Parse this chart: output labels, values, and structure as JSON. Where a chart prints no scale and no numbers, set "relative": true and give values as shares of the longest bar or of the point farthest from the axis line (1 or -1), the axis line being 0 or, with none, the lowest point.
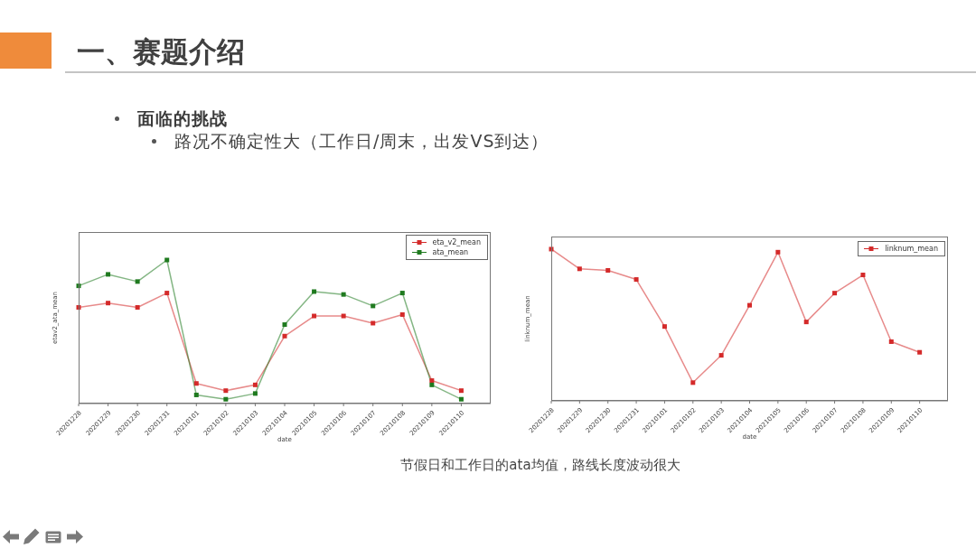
{
  "chart_data": [
    {
      "type": "other",
      "title": "一、赛题介绍",
      "annotations": [
        "面临的挑战",
        "路况不确定性大（工作日/周末，出发VS到达）"
      ]
    },
    {
      "type": "line",
      "categories": [
        "20201228",
        "20201229",
        "20201230",
        "20201231",
        "20210101",
        "20210102",
        "20210103",
        "20210104",
        "20210105",
        "20210106",
        "20210107",
        "20210108",
        "20210109",
        "20210110"
      ],
      "xlabel": "date",
      "ylabel": "etav2_ata_mean",
      "relative": true,
      "tick_labels": "x",
      "legend": "top right",
      "marker": "square",
      "line_style": "solid",
      "series": [
        {
          "name": "eta_v2_mean",
          "color": "#d42a2a",
          "values": [
            0.67,
            0.7,
            0.67,
            0.77,
            0.14,
            0.09,
            0.13,
            0.47,
            0.61,
            0.61,
            0.56,
            0.62,
            0.16,
            0.09
          ]
        },
        {
          "name": "ata_mean",
          "color": "#1f7a1f",
          "values": [
            0.82,
            0.9,
            0.85,
            1,
            0.06,
            0.03,
            0.07,
            0.55,
            0.78,
            0.76,
            0.68,
            0.77,
            0.13,
            0.03
          ]
        }
      ]
    },
    {
      "type": "line",
      "categories": [
        "20201228",
        "20201229",
        "20201230",
        "20201231",
        "20210101",
        "20210102",
        "20210103",
        "20210104",
        "20210105",
        "20210106",
        "20210107",
        "20210108",
        "20210109",
        "20210110"
      ],
      "xlabel": "date",
      "ylabel": "linknum_mean",
      "relative": true,
      "tick_labels": "x",
      "legend": "top right",
      "marker": "square",
      "line_style": "solid",
      "series": [
        {
          "name": "linknum_mean",
          "color": "#d42a2a",
          "values": [
            1,
            0.87,
            0.86,
            0.8,
            0.49,
            0.12,
            0.3,
            0.63,
            0.98,
            0.52,
            0.71,
            0.83,
            0.39,
            0.32
          ]
        }
      ]
    },
    {
      "type": "other",
      "annotations": [
        "节假日和工作日的ata均值，路线长度波动很大"
      ]
    }
  ]
}
